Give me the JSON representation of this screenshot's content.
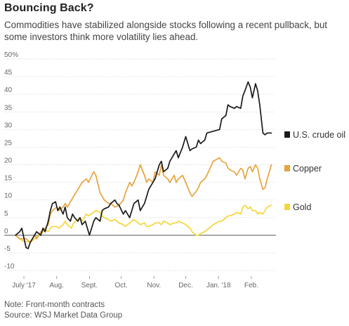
{
  "header": {
    "title": "Bouncing Back?",
    "subtitle": "Commodities have stabilized alongside stocks following a recent pullback, but some investors think more volatility lies ahead."
  },
  "footer": {
    "note": "Note: Front-month contracts",
    "source": "Source: WSJ Market Data Group"
  },
  "chart_data": {
    "type": "line",
    "title": "Bouncing Back?",
    "ylabel": "",
    "xlabel": "",
    "ylim": [
      -10,
      50
    ],
    "xlim": [
      "2017-06-23",
      "2018-02-23"
    ],
    "y_ticks": [
      "50%",
      "45",
      "40",
      "35",
      "30",
      "25",
      "20",
      "15",
      "10",
      "5",
      "0",
      "-5",
      "-10"
    ],
    "y_tick_values": [
      50,
      45,
      40,
      35,
      30,
      25,
      20,
      15,
      10,
      5,
      0,
      -5,
      -10
    ],
    "x_ticks": [
      {
        "label": "July '17",
        "date": "2017-07-01"
      },
      {
        "label": "Aug.",
        "date": "2017-08-01"
      },
      {
        "label": "Sept.",
        "date": "2017-09-01"
      },
      {
        "label": "Oct.",
        "date": "2017-10-01"
      },
      {
        "label": "Nov.",
        "date": "2017-11-01"
      },
      {
        "label": "Dec.",
        "date": "2017-12-01"
      },
      {
        "label": "Jan. '18",
        "date": "2018-01-01"
      },
      {
        "label": "Feb.",
        "date": "2018-02-01"
      }
    ],
    "grid": "horizontal",
    "legend_position": "right",
    "series": [
      {
        "name": "U.S. crude oil",
        "color": "#1a1a1a",
        "points": [
          [
            "2017-06-23",
            0
          ],
          [
            "2017-06-27",
            1
          ],
          [
            "2017-06-29",
            2
          ],
          [
            "2017-07-03",
            -3.5
          ],
          [
            "2017-07-05",
            -3.8
          ],
          [
            "2017-07-07",
            -2
          ],
          [
            "2017-07-11",
            0
          ],
          [
            "2017-07-13",
            1
          ],
          [
            "2017-07-17",
            0
          ],
          [
            "2017-07-19",
            2
          ],
          [
            "2017-07-21",
            1
          ],
          [
            "2017-07-24",
            4
          ],
          [
            "2017-07-26",
            7
          ],
          [
            "2017-07-28",
            9
          ],
          [
            "2017-07-31",
            9.5
          ],
          [
            "2017-08-02",
            7
          ],
          [
            "2017-08-04",
            8
          ],
          [
            "2017-08-07",
            6
          ],
          [
            "2017-08-09",
            8
          ],
          [
            "2017-08-11",
            5
          ],
          [
            "2017-08-14",
            4
          ],
          [
            "2017-08-16",
            6
          ],
          [
            "2017-08-18",
            5
          ],
          [
            "2017-08-21",
            4
          ],
          [
            "2017-08-23",
            5
          ],
          [
            "2017-08-25",
            3
          ],
          [
            "2017-08-28",
            4
          ],
          [
            "2017-08-30",
            2
          ],
          [
            "2017-09-01",
            0
          ],
          [
            "2017-09-05",
            4
          ],
          [
            "2017-09-07",
            5
          ],
          [
            "2017-09-11",
            4
          ],
          [
            "2017-09-13",
            7
          ],
          [
            "2017-09-15",
            7.5
          ],
          [
            "2017-09-19",
            8
          ],
          [
            "2017-09-21",
            9
          ],
          [
            "2017-09-25",
            10
          ],
          [
            "2017-09-27",
            9
          ],
          [
            "2017-09-29",
            8.5
          ],
          [
            "2017-10-03",
            6
          ],
          [
            "2017-10-05",
            7
          ],
          [
            "2017-10-09",
            5
          ],
          [
            "2017-10-11",
            7
          ],
          [
            "2017-10-13",
            9
          ],
          [
            "2017-10-17",
            10
          ],
          [
            "2017-10-19",
            7
          ],
          [
            "2017-10-23",
            9
          ],
          [
            "2017-10-25",
            11
          ],
          [
            "2017-10-27",
            13
          ],
          [
            "2017-10-31",
            15
          ],
          [
            "2017-11-02",
            16
          ],
          [
            "2017-11-06",
            20
          ],
          [
            "2017-11-08",
            21
          ],
          [
            "2017-11-10",
            18
          ],
          [
            "2017-11-14",
            19
          ],
          [
            "2017-11-16",
            21
          ],
          [
            "2017-11-20",
            23
          ],
          [
            "2017-11-22",
            24
          ],
          [
            "2017-11-24",
            22
          ],
          [
            "2017-11-28",
            25
          ],
          [
            "2017-12-01",
            28
          ],
          [
            "2017-12-05",
            24
          ],
          [
            "2017-12-07",
            24.5
          ],
          [
            "2017-12-11",
            25
          ],
          [
            "2017-12-13",
            27
          ],
          [
            "2017-12-15",
            26
          ],
          [
            "2017-12-19",
            27
          ],
          [
            "2017-12-21",
            29
          ],
          [
            "2017-12-27",
            29.5
          ],
          [
            "2018-01-02",
            30
          ],
          [
            "2018-01-04",
            33
          ],
          [
            "2018-01-08",
            34
          ],
          [
            "2018-01-10",
            37
          ],
          [
            "2018-01-12",
            36.5
          ],
          [
            "2018-01-16",
            36
          ],
          [
            "2018-01-18",
            36.5
          ],
          [
            "2018-01-22",
            36
          ],
          [
            "2018-01-24",
            39.5
          ],
          [
            "2018-01-26",
            41
          ],
          [
            "2018-01-29",
            43.5
          ],
          [
            "2018-01-31",
            42
          ],
          [
            "2018-02-02",
            39
          ],
          [
            "2018-02-05",
            43
          ],
          [
            "2018-02-07",
            41
          ],
          [
            "2018-02-09",
            37
          ],
          [
            "2018-02-12",
            29
          ],
          [
            "2018-02-14",
            28.5
          ],
          [
            "2018-02-16",
            29
          ],
          [
            "2018-02-20",
            29
          ]
        ]
      },
      {
        "name": "Copper",
        "color": "#e8a33d",
        "points": [
          [
            "2017-06-23",
            0
          ],
          [
            "2017-06-27",
            -1
          ],
          [
            "2017-06-29",
            -1
          ],
          [
            "2017-07-03",
            -1
          ],
          [
            "2017-07-07",
            -2
          ],
          [
            "2017-07-11",
            0
          ],
          [
            "2017-07-13",
            -1
          ],
          [
            "2017-07-17",
            1
          ],
          [
            "2017-07-21",
            2
          ],
          [
            "2017-07-24",
            3
          ],
          [
            "2017-07-26",
            6
          ],
          [
            "2017-07-28",
            7
          ],
          [
            "2017-08-01",
            8
          ],
          [
            "2017-08-03",
            7
          ],
          [
            "2017-08-07",
            8
          ],
          [
            "2017-08-09",
            9
          ],
          [
            "2017-08-11",
            8
          ],
          [
            "2017-08-15",
            10
          ],
          [
            "2017-08-17",
            11
          ],
          [
            "2017-08-21",
            13
          ],
          [
            "2017-08-23",
            14
          ],
          [
            "2017-08-25",
            15
          ],
          [
            "2017-08-29",
            16
          ],
          [
            "2017-08-31",
            15
          ],
          [
            "2017-09-05",
            18
          ],
          [
            "2017-09-07",
            17
          ],
          [
            "2017-09-11",
            12
          ],
          [
            "2017-09-13",
            11
          ],
          [
            "2017-09-15",
            10
          ],
          [
            "2017-09-19",
            9
          ],
          [
            "2017-09-21",
            9
          ],
          [
            "2017-09-25",
            8
          ],
          [
            "2017-09-29",
            8.5
          ],
          [
            "2017-10-03",
            10
          ],
          [
            "2017-10-05",
            12
          ],
          [
            "2017-10-09",
            15
          ],
          [
            "2017-10-11",
            14
          ],
          [
            "2017-10-13",
            15
          ],
          [
            "2017-10-17",
            18
          ],
          [
            "2017-10-19",
            20
          ],
          [
            "2017-10-23",
            17
          ],
          [
            "2017-10-25",
            15
          ],
          [
            "2017-10-27",
            16
          ],
          [
            "2017-10-31",
            15
          ],
          [
            "2017-11-02",
            18
          ],
          [
            "2017-11-06",
            17
          ],
          [
            "2017-11-08",
            20
          ],
          [
            "2017-11-10",
            17
          ],
          [
            "2017-11-14",
            16
          ],
          [
            "2017-11-16",
            15
          ],
          [
            "2017-11-20",
            17
          ],
          [
            "2017-11-22",
            15
          ],
          [
            "2017-11-24",
            16
          ],
          [
            "2017-11-28",
            17
          ],
          [
            "2017-12-01",
            15
          ],
          [
            "2017-12-05",
            12
          ],
          [
            "2017-12-07",
            11
          ],
          [
            "2017-12-11",
            12.5
          ],
          [
            "2017-12-13",
            13.5
          ],
          [
            "2017-12-15",
            15
          ],
          [
            "2017-12-19",
            16
          ],
          [
            "2017-12-21",
            17
          ],
          [
            "2017-12-27",
            21
          ],
          [
            "2018-01-02",
            22
          ],
          [
            "2018-01-04",
            21
          ],
          [
            "2018-01-08",
            20.5
          ],
          [
            "2018-01-10",
            19
          ],
          [
            "2018-01-12",
            18.5
          ],
          [
            "2018-01-16",
            18
          ],
          [
            "2018-01-18",
            17
          ],
          [
            "2018-01-22",
            19
          ],
          [
            "2018-01-24",
            18.5
          ],
          [
            "2018-01-26",
            16
          ],
          [
            "2018-01-29",
            19
          ],
          [
            "2018-01-31",
            19.5
          ],
          [
            "2018-02-02",
            18
          ],
          [
            "2018-02-05",
            20
          ],
          [
            "2018-02-07",
            19
          ],
          [
            "2018-02-09",
            16
          ],
          [
            "2018-02-12",
            13
          ],
          [
            "2018-02-14",
            13.5
          ],
          [
            "2018-02-16",
            16
          ],
          [
            "2018-02-20",
            20
          ]
        ]
      },
      {
        "name": "Gold",
        "color": "#f5d63d",
        "points": [
          [
            "2017-06-23",
            0
          ],
          [
            "2017-06-27",
            -1
          ],
          [
            "2017-06-29",
            -1.5
          ],
          [
            "2017-07-03",
            -1.8
          ],
          [
            "2017-07-07",
            -2
          ],
          [
            "2017-07-11",
            -1
          ],
          [
            "2017-07-13",
            -0.5
          ],
          [
            "2017-07-17",
            0.5
          ],
          [
            "2017-07-21",
            1.5
          ],
          [
            "2017-07-24",
            1
          ],
          [
            "2017-07-26",
            2
          ],
          [
            "2017-07-28",
            2.5
          ],
          [
            "2017-08-01",
            2.5
          ],
          [
            "2017-08-03",
            2
          ],
          [
            "2017-08-07",
            3
          ],
          [
            "2017-08-09",
            4
          ],
          [
            "2017-08-11",
            3
          ],
          [
            "2017-08-15",
            2
          ],
          [
            "2017-08-17",
            3.5
          ],
          [
            "2017-08-21",
            4.5
          ],
          [
            "2017-08-23",
            5
          ],
          [
            "2017-08-25",
            4
          ],
          [
            "2017-08-29",
            6
          ],
          [
            "2017-08-31",
            5.5
          ],
          [
            "2017-09-05",
            6.5
          ],
          [
            "2017-09-07",
            7
          ],
          [
            "2017-09-11",
            6.5
          ],
          [
            "2017-09-13",
            5.5
          ],
          [
            "2017-09-15",
            5
          ],
          [
            "2017-09-19",
            4.5
          ],
          [
            "2017-09-21",
            4
          ],
          [
            "2017-09-25",
            4.5
          ],
          [
            "2017-09-29",
            3.5
          ],
          [
            "2017-10-03",
            3
          ],
          [
            "2017-10-05",
            2.5
          ],
          [
            "2017-10-09",
            3.5
          ],
          [
            "2017-10-11",
            4
          ],
          [
            "2017-10-13",
            4.5
          ],
          [
            "2017-10-17",
            3.5
          ],
          [
            "2017-10-19",
            3
          ],
          [
            "2017-10-23",
            3.5
          ],
          [
            "2017-10-25",
            2.5
          ],
          [
            "2017-10-27",
            2.5
          ],
          [
            "2017-10-31",
            3
          ],
          [
            "2017-11-02",
            3.5
          ],
          [
            "2017-11-06",
            3.5
          ],
          [
            "2017-11-08",
            3
          ],
          [
            "2017-11-10",
            4
          ],
          [
            "2017-11-14",
            3.5
          ],
          [
            "2017-11-16",
            3
          ],
          [
            "2017-11-20",
            3.5
          ],
          [
            "2017-11-22",
            3.5
          ],
          [
            "2017-11-24",
            4
          ],
          [
            "2017-11-28",
            3.5
          ],
          [
            "2017-12-01",
            3
          ],
          [
            "2017-12-05",
            2
          ],
          [
            "2017-12-07",
            1
          ],
          [
            "2017-12-11",
            0
          ],
          [
            "2017-12-13",
            0
          ],
          [
            "2017-12-15",
            0.5
          ],
          [
            "2017-12-19",
            1
          ],
          [
            "2017-12-21",
            1.5
          ],
          [
            "2017-12-27",
            3
          ],
          [
            "2018-01-02",
            4
          ],
          [
            "2018-01-04",
            4
          ],
          [
            "2018-01-08",
            5
          ],
          [
            "2018-01-10",
            5.5
          ],
          [
            "2018-01-12",
            5.5
          ],
          [
            "2018-01-16",
            6
          ],
          [
            "2018-01-18",
            6.5
          ],
          [
            "2018-01-22",
            6
          ],
          [
            "2018-01-24",
            8
          ],
          [
            "2018-01-26",
            8.5
          ],
          [
            "2018-01-29",
            7.5
          ],
          [
            "2018-01-31",
            8
          ],
          [
            "2018-02-02",
            7
          ],
          [
            "2018-02-05",
            7
          ],
          [
            "2018-02-07",
            6
          ],
          [
            "2018-02-09",
            6.5
          ],
          [
            "2018-02-12",
            6
          ],
          [
            "2018-02-14",
            7
          ],
          [
            "2018-02-16",
            8
          ],
          [
            "2018-02-20",
            8.5
          ]
        ]
      }
    ]
  }
}
